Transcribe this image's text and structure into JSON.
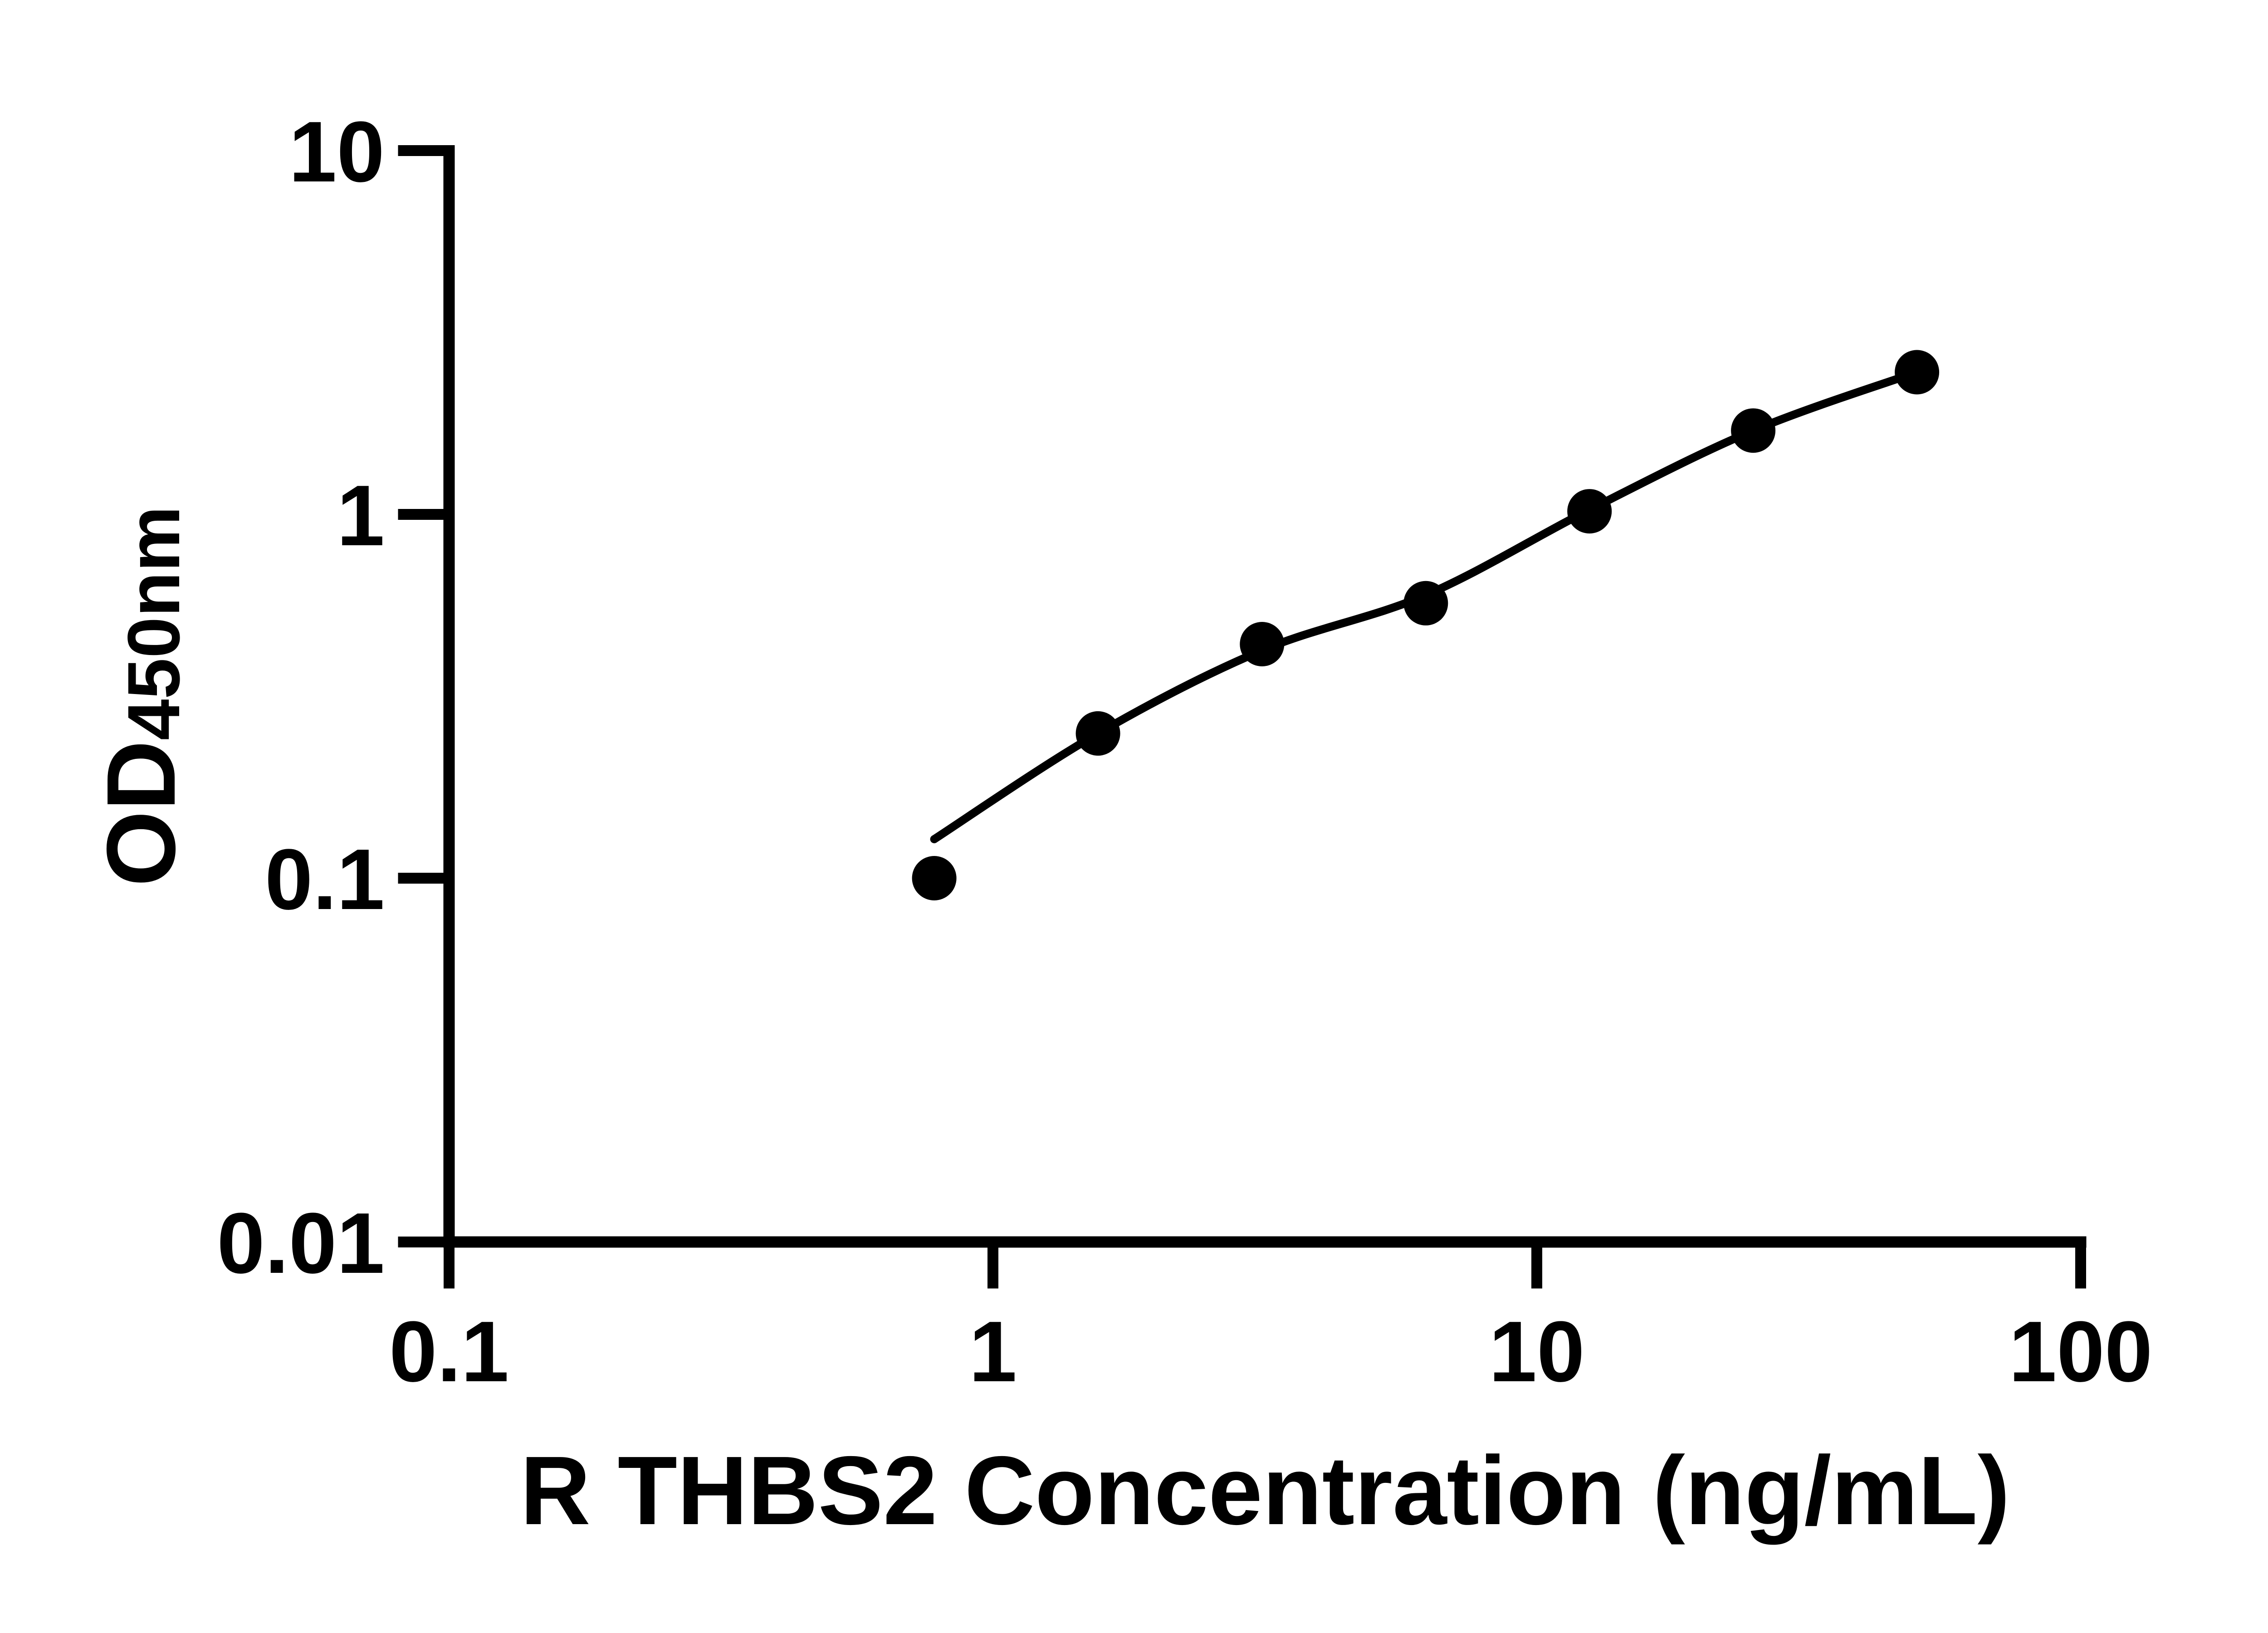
{
  "chart_data": {
    "type": "scatter",
    "title": "",
    "xlabel": "R THBS2 Concentration (ng/mL)",
    "ylabel": {
      "main": "OD",
      "subscript": "450nm"
    },
    "x_scale": "log10",
    "y_scale": "log10",
    "xlim": [
      0.1,
      100
    ],
    "ylim": [
      0.01,
      10
    ],
    "grid": false,
    "legend": "none",
    "x_ticks": [
      {
        "value": 0.1,
        "label": "0.1"
      },
      {
        "value": 1,
        "label": "1"
      },
      {
        "value": 10,
        "label": "10"
      },
      {
        "value": 100,
        "label": "100"
      }
    ],
    "y_ticks": [
      {
        "value": 0.01,
        "label": "0.01"
      },
      {
        "value": 0.1,
        "label": "0.1"
      },
      {
        "value": 1,
        "label": "1"
      },
      {
        "value": 10,
        "label": "10"
      }
    ],
    "series": [
      {
        "name": "standard-points",
        "type": "scatter",
        "marker": "filled-circle",
        "color": "#000000",
        "points": [
          {
            "x": 0.78,
            "y": 0.1
          },
          {
            "x": 1.56,
            "y": 0.25
          },
          {
            "x": 3.125,
            "y": 0.44
          },
          {
            "x": 6.25,
            "y": 0.57
          },
          {
            "x": 12.5,
            "y": 1.02
          },
          {
            "x": 25,
            "y": 1.7
          },
          {
            "x": 50,
            "y": 2.46
          }
        ]
      },
      {
        "name": "fit-line",
        "type": "line",
        "color": "#000000",
        "points": [
          {
            "x": 0.78,
            "y": 0.128
          },
          {
            "x": 1.56,
            "y": 0.25
          },
          {
            "x": 3.125,
            "y": 0.423
          },
          {
            "x": 6.25,
            "y": 0.6
          },
          {
            "x": 12.5,
            "y": 1.03
          },
          {
            "x": 25,
            "y": 1.7
          },
          {
            "x": 50,
            "y": 2.46
          }
        ]
      }
    ],
    "colors": {
      "background": "#ffffff",
      "ink": "#000000"
    }
  }
}
